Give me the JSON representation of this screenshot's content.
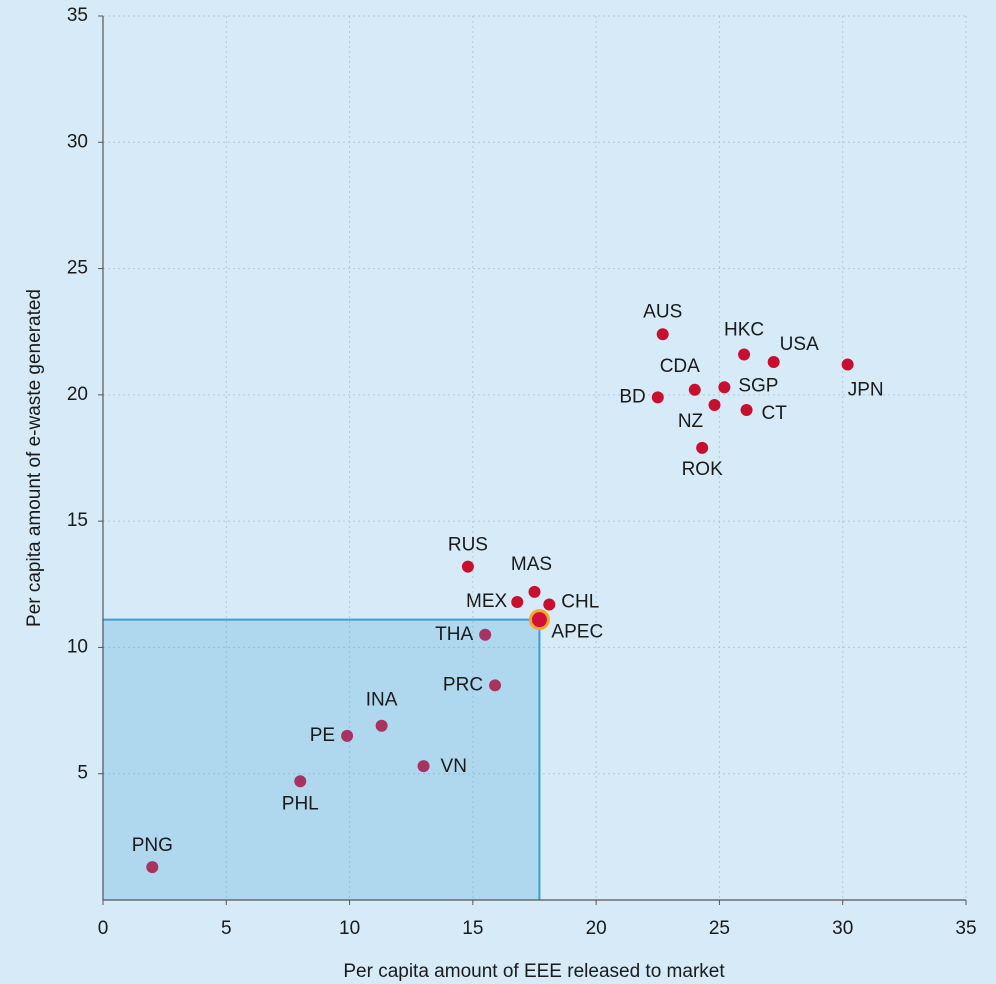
{
  "chart_data": {
    "type": "scatter",
    "x_label": "Per capita amount of EEE released to market",
    "y_label": "Per capita amount of e-waste generated",
    "xlim": [
      0,
      35
    ],
    "ylim": [
      0,
      35
    ],
    "xticks": [
      0,
      5,
      10,
      15,
      20,
      25,
      30,
      35
    ],
    "yticks": [
      5,
      10,
      15,
      20,
      25,
      30,
      35
    ],
    "grid": true,
    "reference_point": 20,
    "reference_color": "#3a9fd8",
    "points": [
      {
        "label": "AUS",
        "x": 22.7,
        "y": 22.4,
        "color": "#c8102e"
      },
      {
        "label": "HKC",
        "x": 26.0,
        "y": 21.6,
        "color": "#c8102e"
      },
      {
        "label": "USA",
        "x": 27.2,
        "y": 21.3,
        "color": "#c8102e"
      },
      {
        "label": "JPN",
        "x": 30.2,
        "y": 21.2,
        "color": "#c8102e"
      },
      {
        "label": "CDA",
        "x": 24.0,
        "y": 20.2,
        "color": "#c8102e"
      },
      {
        "label": "SGP",
        "x": 25.2,
        "y": 20.3,
        "color": "#c8102e"
      },
      {
        "label": "BD",
        "x": 22.5,
        "y": 19.9,
        "color": "#c8102e"
      },
      {
        "label": "NZ",
        "x": 24.8,
        "y": 19.6,
        "color": "#c8102e"
      },
      {
        "label": "CT",
        "x": 26.1,
        "y": 19.4,
        "color": "#c8102e"
      },
      {
        "label": "ROK",
        "x": 24.3,
        "y": 17.9,
        "color": "#c8102e"
      },
      {
        "label": "RUS",
        "x": 14.8,
        "y": 13.2,
        "color": "#c8102e"
      },
      {
        "label": "MAS",
        "x": 17.5,
        "y": 12.2,
        "color": "#c8102e"
      },
      {
        "label": "MEX",
        "x": 16.8,
        "y": 11.8,
        "color": "#c8102e"
      },
      {
        "label": "CHL",
        "x": 18.1,
        "y": 11.7,
        "color": "#c8102e"
      },
      {
        "label": "THA",
        "x": 15.5,
        "y": 10.5,
        "color": "#a83260"
      },
      {
        "label": "PRC",
        "x": 15.9,
        "y": 8.5,
        "color": "#a83260"
      },
      {
        "label": "INA",
        "x": 11.3,
        "y": 6.9,
        "color": "#a83260"
      },
      {
        "label": "PE",
        "x": 9.9,
        "y": 6.5,
        "color": "#a83260"
      },
      {
        "label": "VN",
        "x": 13.0,
        "y": 5.3,
        "color": "#a83260"
      },
      {
        "label": "PHL",
        "x": 8.0,
        "y": 4.7,
        "color": "#a83260"
      },
      {
        "label": "APEC",
        "x": 17.7,
        "y": 11.1,
        "color": "#d0103a"
      },
      {
        "label": "PNG",
        "x": 2.0,
        "y": 1.3,
        "color": "#a83260"
      }
    ]
  }
}
